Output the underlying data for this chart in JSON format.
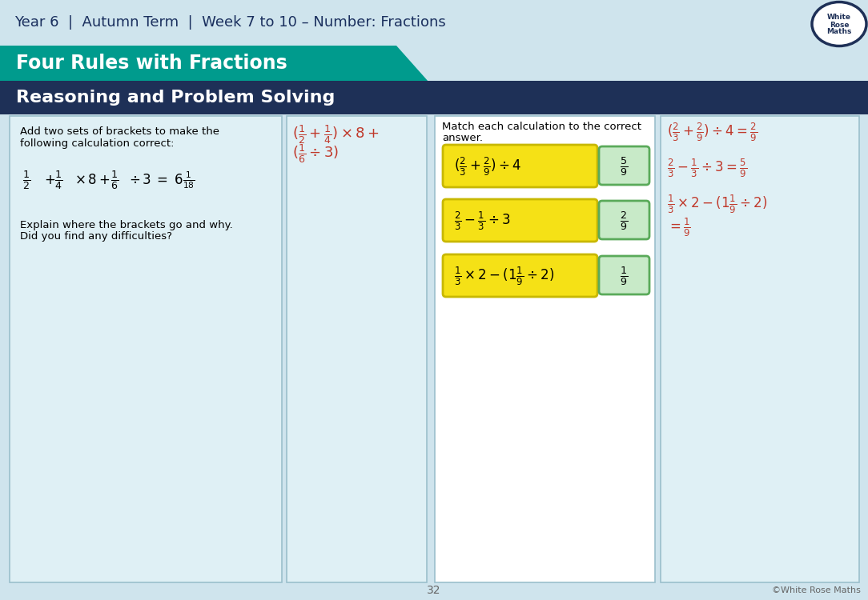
{
  "bg_color": "#cfe4ed",
  "header_text": "Year 6  |  Autumn Term  |  Week 7 to 10 – Number: Fractions",
  "header_text_color": "#1a2f5e",
  "teal_banner_color": "#009b8d",
  "teal_banner_text": "Four Rules with Fractions",
  "navy_banner_color": "#1e3057",
  "navy_banner_text": "Reasoning and Problem Solving",
  "panel_bg_teal": "#dff0f5",
  "panel_bg_white": "#ffffff",
  "panel_border_color": "#9bbfcc",
  "footer_text": "32",
  "footer_right": "©White Rose Maths",
  "dark_text": "#1e3057",
  "red_text": "#c0392b",
  "yellow_fill": "#f5e116",
  "yellow_edge": "#c8b800",
  "green_fill": "#c8eac8",
  "green_edge": "#5aaa5a"
}
